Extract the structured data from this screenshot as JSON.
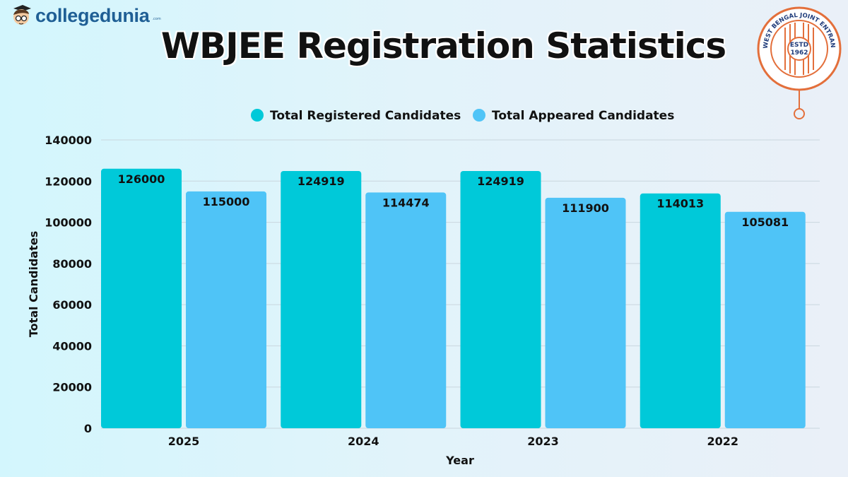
{
  "brand": {
    "logo_text": "collegedunia",
    "logo_suffix": ".com"
  },
  "seal": {
    "text": "WEST BENGAL JOINT ENTRANCE EXAMINATIONS BOARD",
    "estd": "ESTD",
    "year": "1962"
  },
  "colors": {
    "registered": "#00c9d9",
    "appeared": "#4fc4f7",
    "grid": "#c9d6de"
  },
  "chart_data": {
    "type": "bar",
    "title": "WBJEE Registration Statistics",
    "xlabel": "Year",
    "ylabel": "Total Candidates",
    "categories": [
      "2025",
      "2024",
      "2023",
      "2022"
    ],
    "series": [
      {
        "name": "Total Registered Candidates",
        "values": [
          126000,
          124919,
          124919,
          114013
        ]
      },
      {
        "name": "Total Appeared Candidates",
        "values": [
          115000,
          114474,
          111900,
          105081
        ]
      }
    ],
    "ylim": [
      0,
      140000
    ],
    "yticks": [
      "0",
      "20000",
      "40000",
      "60000",
      "80000",
      "100000",
      "120000",
      "140000"
    ],
    "grid": true,
    "legend": "top-center"
  }
}
